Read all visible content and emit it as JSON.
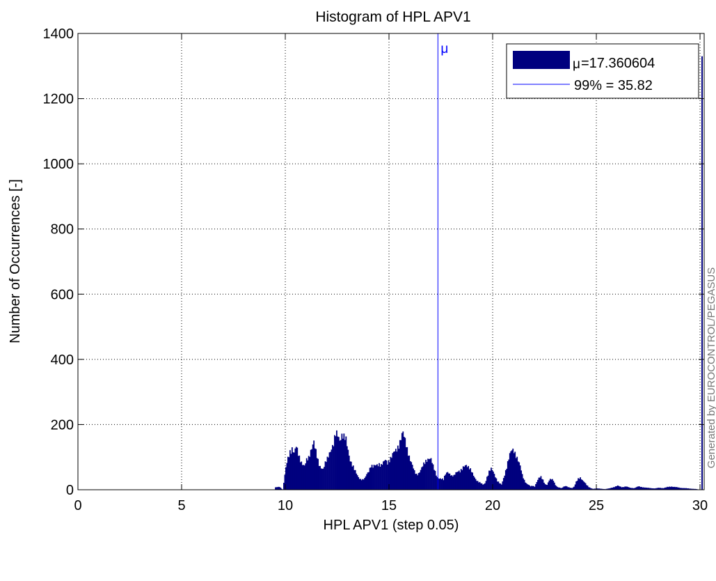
{
  "chart_data": {
    "type": "bar",
    "title": "Histogram of HPL APV1",
    "xlabel": "HPL APV1 (step 0.05)",
    "ylabel": "Number of Occurrences [-]",
    "watermark": "Generated by EUROCONTROL/PEGASUS",
    "xlim": [
      0,
      30.2
    ],
    "ylim": [
      0,
      1400
    ],
    "xticks": [
      0,
      5,
      10,
      15,
      20,
      25,
      30
    ],
    "yticks": [
      0,
      200,
      400,
      600,
      800,
      1000,
      1200,
      1400
    ],
    "grid": true,
    "legend_position": "top-right",
    "bin_step": 0.05,
    "bar_color": "#00007f",
    "line_color": "#0000ff",
    "mean": 17.360604,
    "mean_marker": "μ",
    "legend": [
      {
        "label": "=17.360604",
        "symbol": "μ",
        "kind": "bar"
      },
      {
        "label": "99% = 35.82",
        "kind": "line"
      }
    ],
    "envelope": [
      [
        9.45,
        0
      ],
      [
        9.5,
        7
      ],
      [
        9.7,
        9
      ],
      [
        9.85,
        0
      ],
      [
        9.9,
        22
      ],
      [
        10.0,
        65
      ],
      [
        10.1,
        95
      ],
      [
        10.2,
        120
      ],
      [
        10.3,
        130
      ],
      [
        10.4,
        110
      ],
      [
        10.5,
        128
      ],
      [
        10.6,
        110
      ],
      [
        10.7,
        95
      ],
      [
        10.8,
        80
      ],
      [
        10.9,
        70
      ],
      [
        11.0,
        88
      ],
      [
        11.1,
        100
      ],
      [
        11.2,
        125
      ],
      [
        11.3,
        140
      ],
      [
        11.35,
        143
      ],
      [
        11.4,
        125
      ],
      [
        11.5,
        100
      ],
      [
        11.6,
        80
      ],
      [
        11.7,
        70
      ],
      [
        11.8,
        62
      ],
      [
        11.9,
        78
      ],
      [
        12.0,
        95
      ],
      [
        12.1,
        118
      ],
      [
        12.2,
        130
      ],
      [
        12.3,
        135
      ],
      [
        12.4,
        165
      ],
      [
        12.5,
        172
      ],
      [
        12.6,
        160
      ],
      [
        12.7,
        168
      ],
      [
        12.8,
        155
      ],
      [
        12.9,
        150
      ],
      [
        13.0,
        125
      ],
      [
        13.1,
        95
      ],
      [
        13.2,
        75
      ],
      [
        13.3,
        60
      ],
      [
        13.4,
        50
      ],
      [
        13.5,
        40
      ],
      [
        13.6,
        33
      ],
      [
        13.7,
        30
      ],
      [
        13.8,
        33
      ],
      [
        13.9,
        48
      ],
      [
        14.0,
        60
      ],
      [
        14.1,
        75
      ],
      [
        14.2,
        68
      ],
      [
        14.3,
        72
      ],
      [
        14.4,
        78
      ],
      [
        14.5,
        82
      ],
      [
        14.6,
        75
      ],
      [
        14.7,
        80
      ],
      [
        14.8,
        90
      ],
      [
        14.9,
        85
      ],
      [
        15.0,
        95
      ],
      [
        15.1,
        100
      ],
      [
        15.2,
        110
      ],
      [
        15.3,
        120
      ],
      [
        15.4,
        135
      ],
      [
        15.5,
        150
      ],
      [
        15.6,
        165
      ],
      [
        15.65,
        168
      ],
      [
        15.7,
        158
      ],
      [
        15.8,
        140
      ],
      [
        15.9,
        118
      ],
      [
        16.0,
        92
      ],
      [
        16.1,
        72
      ],
      [
        16.2,
        55
      ],
      [
        16.3,
        48
      ],
      [
        16.4,
        52
      ],
      [
        16.5,
        60
      ],
      [
        16.6,
        70
      ],
      [
        16.7,
        82
      ],
      [
        16.8,
        95
      ],
      [
        16.9,
        100
      ],
      [
        17.0,
        92
      ],
      [
        17.1,
        70
      ],
      [
        17.2,
        55
      ],
      [
        17.3,
        40
      ],
      [
        17.4,
        35
      ],
      [
        17.5,
        32
      ],
      [
        17.6,
        30
      ],
      [
        17.7,
        50
      ],
      [
        17.8,
        58
      ],
      [
        17.9,
        48
      ],
      [
        18.0,
        40
      ],
      [
        18.1,
        42
      ],
      [
        18.2,
        55
      ],
      [
        18.3,
        60
      ],
      [
        18.4,
        55
      ],
      [
        18.5,
        60
      ],
      [
        18.6,
        72
      ],
      [
        18.7,
        80
      ],
      [
        18.8,
        72
      ],
      [
        18.9,
        60
      ],
      [
        19.0,
        48
      ],
      [
        19.1,
        38
      ],
      [
        19.2,
        30
      ],
      [
        19.3,
        24
      ],
      [
        19.4,
        20
      ],
      [
        19.5,
        15
      ],
      [
        19.6,
        20
      ],
      [
        19.7,
        40
      ],
      [
        19.8,
        55
      ],
      [
        19.9,
        62
      ],
      [
        20.0,
        55
      ],
      [
        20.1,
        42
      ],
      [
        20.2,
        28
      ],
      [
        20.3,
        20
      ],
      [
        20.4,
        15
      ],
      [
        20.5,
        35
      ],
      [
        20.6,
        60
      ],
      [
        20.7,
        85
      ],
      [
        20.8,
        105
      ],
      [
        20.9,
        118
      ],
      [
        21.0,
        122
      ],
      [
        21.1,
        110
      ],
      [
        21.2,
        90
      ],
      [
        21.3,
        70
      ],
      [
        21.4,
        45
      ],
      [
        21.5,
        30
      ],
      [
        21.6,
        20
      ],
      [
        21.7,
        15
      ],
      [
        21.8,
        10
      ],
      [
        21.9,
        12
      ],
      [
        22.0,
        10
      ],
      [
        22.1,
        25
      ],
      [
        22.2,
        35
      ],
      [
        22.3,
        38
      ],
      [
        22.4,
        30
      ],
      [
        22.5,
        18
      ],
      [
        22.6,
        15
      ],
      [
        22.7,
        28
      ],
      [
        22.8,
        32
      ],
      [
        22.9,
        30
      ],
      [
        23.0,
        15
      ],
      [
        23.1,
        8
      ],
      [
        23.2,
        6
      ],
      [
        23.3,
        5
      ],
      [
        23.4,
        10
      ],
      [
        23.5,
        12
      ],
      [
        23.6,
        8
      ],
      [
        23.7,
        6
      ],
      [
        23.8,
        5
      ],
      [
        23.9,
        10
      ],
      [
        24.0,
        25
      ],
      [
        24.1,
        32
      ],
      [
        24.2,
        35
      ],
      [
        24.3,
        30
      ],
      [
        24.4,
        25
      ],
      [
        24.5,
        15
      ],
      [
        24.6,
        8
      ],
      [
        24.7,
        5
      ],
      [
        24.8,
        3
      ],
      [
        25.0,
        4
      ],
      [
        25.2,
        3
      ],
      [
        25.4,
        2
      ],
      [
        25.6,
        4
      ],
      [
        25.8,
        8
      ],
      [
        26.0,
        12
      ],
      [
        26.2,
        8
      ],
      [
        26.4,
        10
      ],
      [
        26.6,
        6
      ],
      [
        26.8,
        5
      ],
      [
        27.0,
        10
      ],
      [
        27.2,
        8
      ],
      [
        27.4,
        6
      ],
      [
        27.6,
        5
      ],
      [
        27.8,
        4
      ],
      [
        28.0,
        6
      ],
      [
        28.2,
        5
      ],
      [
        28.4,
        8
      ],
      [
        28.6,
        10
      ],
      [
        28.8,
        8
      ],
      [
        29.0,
        6
      ],
      [
        29.2,
        5
      ],
      [
        29.4,
        4
      ],
      [
        29.6,
        3
      ],
      [
        29.8,
        2
      ],
      [
        29.95,
        0
      ]
    ],
    "overflow_bin": {
      "x": 30.1,
      "value": 1330
    }
  }
}
